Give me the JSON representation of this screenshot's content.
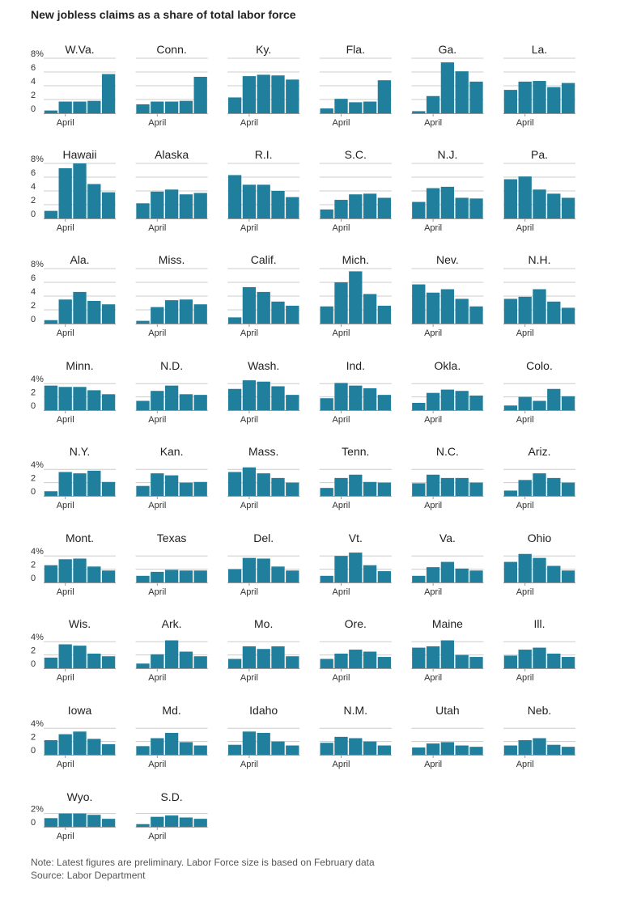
{
  "title": "New jobless claims as a share of total labor force",
  "note": "Note: Latest figures are preliminary. Labor Force size is based on February data",
  "source": "Source: Labor Department",
  "colors": {
    "bar": "#1f7f9c",
    "grid": "#cccccc",
    "axis": "#999999",
    "text": "#222222"
  },
  "chart_data": {
    "type": "bar",
    "title": "New jobless claims as a share of total labor force",
    "unit": "% of labor force",
    "x_label": "April",
    "weeks": 5,
    "rows": [
      {
        "ymax": 8,
        "ticks": [
          0,
          2,
          4,
          6,
          8
        ],
        "tick_labels": [
          "0",
          "2",
          "4",
          "6",
          "8%"
        ],
        "states": [
          "W.Va.",
          "Conn.",
          "Ky.",
          "Fla.",
          "Ga.",
          "La."
        ]
      },
      {
        "ymax": 8,
        "ticks": [
          0,
          2,
          4,
          6,
          8
        ],
        "tick_labels": [
          "0",
          "2",
          "4",
          "6",
          "8%"
        ],
        "states": [
          "Hawaii",
          "Alaska",
          "R.I.",
          "S.C.",
          "N.J.",
          "Pa."
        ]
      },
      {
        "ymax": 8,
        "ticks": [
          0,
          2,
          4,
          6,
          8
        ],
        "tick_labels": [
          "0",
          "2",
          "4",
          "6",
          "8%"
        ],
        "states": [
          "Ala.",
          "Miss.",
          "Calif.",
          "Mich.",
          "Nev.",
          "N.H."
        ]
      },
      {
        "ymax": 4,
        "ticks": [
          0,
          2,
          4
        ],
        "tick_labels": [
          "0",
          "2",
          "4%"
        ],
        "states": [
          "Minn.",
          "N.D.",
          "Wash.",
          "Ind.",
          "Okla.",
          "Colo."
        ]
      },
      {
        "ymax": 4,
        "ticks": [
          0,
          2,
          4
        ],
        "tick_labels": [
          "0",
          "2",
          "4%"
        ],
        "states": [
          "N.Y.",
          "Kan.",
          "Mass.",
          "Tenn.",
          "N.C.",
          "Ariz."
        ]
      },
      {
        "ymax": 4,
        "ticks": [
          0,
          2,
          4
        ],
        "tick_labels": [
          "0",
          "2",
          "4%"
        ],
        "states": [
          "Mont.",
          "Texas",
          "Del.",
          "Vt.",
          "Va.",
          "Ohio"
        ]
      },
      {
        "ymax": 4,
        "ticks": [
          0,
          2,
          4
        ],
        "tick_labels": [
          "0",
          "2",
          "4%"
        ],
        "states": [
          "Wis.",
          "Ark.",
          "Mo.",
          "Ore.",
          "Maine",
          "Ill."
        ]
      },
      {
        "ymax": 4,
        "ticks": [
          0,
          2,
          4
        ],
        "tick_labels": [
          "0",
          "2",
          "4%"
        ],
        "states": [
          "Iowa",
          "Md.",
          "Idaho",
          "N.M.",
          "Utah",
          "Neb."
        ]
      },
      {
        "ymax": 2,
        "ticks": [
          0,
          2
        ],
        "tick_labels": [
          "0",
          "2%"
        ],
        "states": [
          "Wyo.",
          "S.D."
        ]
      }
    ],
    "series": {
      "W.Va.": [
        0.4,
        1.7,
        1.7,
        1.8,
        5.7
      ],
      "Conn.": [
        1.3,
        1.7,
        1.7,
        1.8,
        5.3
      ],
      "Ky.": [
        2.3,
        5.4,
        5.6,
        5.5,
        4.9
      ],
      "Fla.": [
        0.7,
        2.1,
        1.6,
        1.7,
        4.8
      ],
      "Ga.": [
        0.3,
        2.5,
        7.4,
        6.1,
        4.6
      ],
      "La.": [
        3.4,
        4.6,
        4.7,
        3.8,
        4.4
      ],
      "Hawaii": [
        1.1,
        7.3,
        8.0,
        5.0,
        3.8
      ],
      "Alaska": [
        2.2,
        3.9,
        4.2,
        3.5,
        3.7
      ],
      "R.I.": [
        6.3,
        4.9,
        4.9,
        4.0,
        3.1
      ],
      "S.C.": [
        1.3,
        2.7,
        3.5,
        3.6,
        3.0
      ],
      "N.J.": [
        2.4,
        4.4,
        4.6,
        3.0,
        2.9
      ],
      "Pa.": [
        5.7,
        6.1,
        4.2,
        3.6,
        3.0
      ],
      "Ala.": [
        0.5,
        3.5,
        4.6,
        3.3,
        2.8
      ],
      "Miss.": [
        0.4,
        2.4,
        3.4,
        3.5,
        2.8
      ],
      "Calif.": [
        0.9,
        5.3,
        4.6,
        3.2,
        2.6
      ],
      "Mich.": [
        2.5,
        6.0,
        7.6,
        4.3,
        2.6
      ],
      "Nev.": [
        5.7,
        4.5,
        5.0,
        3.6,
        2.5
      ],
      "N.H.": [
        3.6,
        3.9,
        5.0,
        3.2,
        2.3
      ],
      "Minn.": [
        3.7,
        3.5,
        3.5,
        3.0,
        2.4
      ],
      "N.D.": [
        1.4,
        2.9,
        3.7,
        2.4,
        2.3
      ],
      "Wash.": [
        3.2,
        4.5,
        4.3,
        3.6,
        2.3
      ],
      "Ind.": [
        1.8,
        4.1,
        3.7,
        3.3,
        2.3
      ],
      "Okla.": [
        1.1,
        2.6,
        3.1,
        2.9,
        2.2
      ],
      "Colo.": [
        0.7,
        2.0,
        1.4,
        3.2,
        2.1
      ],
      "N.Y.": [
        0.7,
        3.6,
        3.4,
        3.8,
        2.1
      ],
      "Kan.": [
        1.5,
        3.4,
        3.1,
        2.0,
        2.1
      ],
      "Mass.": [
        3.6,
        4.3,
        3.4,
        2.7,
        2.0
      ],
      "Tenn.": [
        1.2,
        2.7,
        3.2,
        2.1,
        2.0
      ],
      "N.C.": [
        1.9,
        3.2,
        2.7,
        2.7,
        2.0
      ],
      "Ariz.": [
        0.8,
        2.4,
        3.4,
        2.7,
        2.0
      ],
      "Mont.": [
        2.6,
        3.5,
        3.6,
        2.4,
        1.8
      ],
      "Texas": [
        1.0,
        1.6,
        1.9,
        1.8,
        1.8
      ],
      "Del.": [
        2.0,
        3.7,
        3.6,
        2.4,
        1.8
      ],
      "Vt.": [
        1.0,
        4.0,
        4.5,
        2.6,
        1.7
      ],
      "Va.": [
        1.0,
        2.3,
        3.1,
        2.1,
        1.8
      ],
      "Ohio": [
        3.1,
        4.3,
        3.7,
        2.5,
        1.8
      ],
      "Wis.": [
        1.6,
        3.6,
        3.4,
        2.2,
        1.8
      ],
      "Ark.": [
        0.7,
        2.1,
        4.2,
        2.5,
        1.8
      ],
      "Mo.": [
        1.4,
        3.3,
        2.9,
        3.3,
        1.8
      ],
      "Ore.": [
        1.4,
        2.2,
        2.8,
        2.5,
        1.7
      ],
      "Maine": [
        3.1,
        3.3,
        4.2,
        2.0,
        1.7
      ],
      "Ill.": [
        1.9,
        2.8,
        3.1,
        2.2,
        1.7
      ],
      "Iowa": [
        2.2,
        3.1,
        3.5,
        2.4,
        1.6
      ],
      "Md.": [
        1.3,
        2.5,
        3.3,
        1.9,
        1.4
      ],
      "Idaho": [
        1.5,
        3.5,
        3.3,
        2.0,
        1.4
      ],
      "N.M.": [
        1.8,
        2.7,
        2.5,
        2.0,
        1.4
      ],
      "Utah": [
        1.1,
        1.7,
        1.9,
        1.4,
        1.2
      ],
      "Neb.": [
        1.4,
        2.2,
        2.5,
        1.5,
        1.2
      ],
      "Wyo.": [
        1.3,
        2.0,
        2.0,
        1.8,
        1.2
      ],
      "S.D.": [
        0.4,
        1.5,
        1.7,
        1.4,
        1.2
      ]
    }
  }
}
